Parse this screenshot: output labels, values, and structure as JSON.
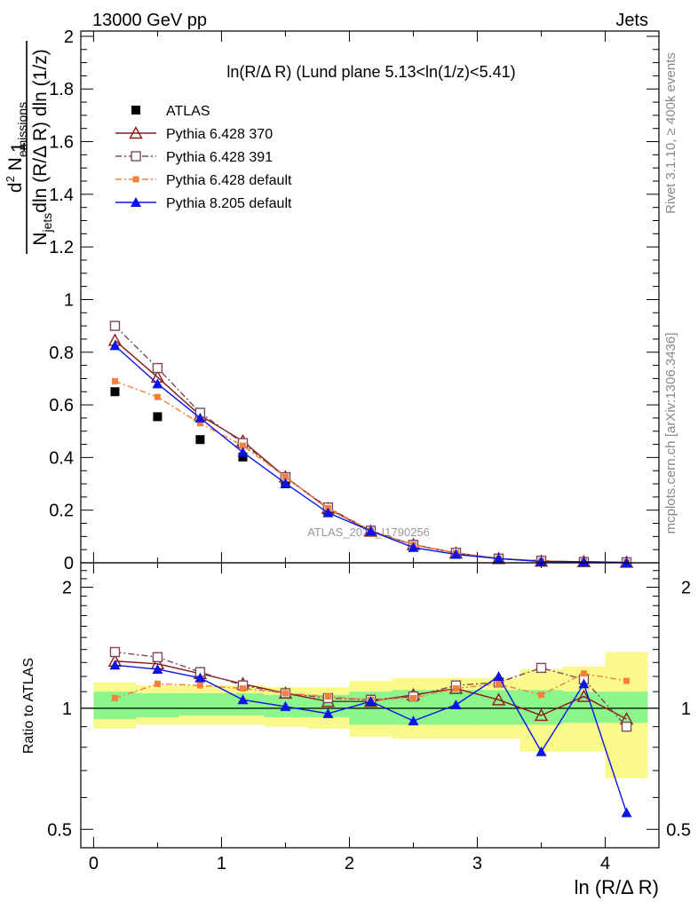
{
  "header": {
    "process": "13000 GeV pp",
    "category": "Jets"
  },
  "side_labels": {
    "rivet": "Rivet 3.1.10, ≥ 400k events",
    "mcplots": "mcplots.cern.ch [arXiv:1306.3436]"
  },
  "main_axis": {
    "ylabel_numerator_pre": "d",
    "ylabel_numerator_sup": "2",
    "ylabel_numerator_main": " N",
    "ylabel_numerator_sub": "emissions",
    "ylabel_den_pre": "N",
    "ylabel_den_sub": "jets",
    "ylabel_den_main": "dln (R/Δ R) dln (1/z)",
    "ylabel_prefix": "1"
  },
  "ratio_axis": {
    "ylabel": "Ratio to ATLAS"
  },
  "colors": {
    "data": "#000000",
    "p370": "#8b1a1a",
    "p391": "#7a4a5a",
    "p6def": "#f57f3c",
    "p8def": "#0a14e6",
    "band_inner": "#8cf58c",
    "band_outer": "#fafa8c"
  },
  "chart_data": [
    {
      "type": "scatter",
      "panel": "main",
      "title": "ln(R/Δ R) (Lund plane 5.13<ln(1/z)<5.41)",
      "watermark": "ATLAS_2020_I1790256",
      "xlabel": "ln (R/Δ R)",
      "ylabel": "1/N_jets d²N_emissions / dln(R/ΔR) dln(1/z)",
      "xlim": [
        -0.1,
        4.42
      ],
      "ylim": [
        0,
        2.02
      ],
      "xticks": [
        0,
        1,
        2,
        3,
        4
      ],
      "yticks": [
        0,
        0.2,
        0.4,
        0.6,
        0.8,
        1,
        1.2,
        1.4,
        1.6,
        1.8,
        2
      ],
      "ytick_labels": [
        "0",
        "0.2",
        "0.4",
        "0.6",
        "0.8",
        "1",
        "1.2",
        "1.4",
        "1.6",
        "1.8",
        "2"
      ],
      "legend_position": "top-left",
      "x": [
        0.167,
        0.5,
        0.833,
        1.167,
        1.5,
        1.833,
        2.167,
        2.5,
        2.833,
        3.167,
        3.5,
        3.833,
        4.167
      ],
      "series": [
        {
          "name": "ATLAS",
          "key": "data",
          "marker": "square",
          "line": "none",
          "values": [
            0.65,
            0.555,
            0.468,
            0.402,
            0.3,
            0.195,
            0.118,
            0.064,
            0.033,
            0.013,
            0.006,
            0.003,
            0.002
          ]
        },
        {
          "name": "Pythia 6.428 370",
          "key": "p370",
          "marker": "triangle-open",
          "line": "solid",
          "values": [
            0.845,
            0.705,
            0.56,
            0.462,
            0.326,
            0.206,
            0.12,
            0.069,
            0.037,
            0.016,
            0.006,
            0.004,
            0.002
          ]
        },
        {
          "name": "Pythia 6.428 391",
          "key": "p391",
          "marker": "square-open",
          "line": "dashdot",
          "values": [
            0.9,
            0.74,
            0.57,
            0.455,
            0.325,
            0.21,
            0.122,
            0.068,
            0.038,
            0.016,
            0.008,
            0.003,
            0.002
          ]
        },
        {
          "name": "Pythia 6.428 default",
          "key": "p6def",
          "marker": "square-small",
          "line": "dashdot",
          "values": [
            0.69,
            0.63,
            0.53,
            0.445,
            0.326,
            0.208,
            0.122,
            0.068,
            0.037,
            0.016,
            0.007,
            0.004,
            0.002
          ]
        },
        {
          "name": "Pythia 8.205 default",
          "key": "p8def",
          "marker": "triangle",
          "line": "solid",
          "values": [
            0.825,
            0.68,
            0.55,
            0.42,
            0.302,
            0.19,
            0.121,
            0.058,
            0.032,
            0.016,
            0.005,
            0.004,
            0.001
          ]
        }
      ]
    },
    {
      "type": "scatter",
      "panel": "ratio",
      "xlabel": "ln (R/Δ R)",
      "ylabel": "Ratio to ATLAS",
      "yscale": "log",
      "xlim": [
        -0.1,
        4.42
      ],
      "ylim": [
        0.45,
        2.3
      ],
      "xticks": [
        0,
        1,
        2,
        3,
        4
      ],
      "yticks": [
        0.5,
        1,
        2
      ],
      "ytick_labels": [
        "0.5",
        "1",
        "2"
      ],
      "bins": [
        0,
        0.333,
        0.667,
        1.0,
        1.333,
        1.667,
        2.0,
        2.333,
        2.667,
        3.0,
        3.333,
        3.667,
        4.0,
        4.333
      ],
      "band_inner": [
        [
          0.94,
          1.1
        ],
        [
          0.95,
          1.09
        ],
        [
          0.96,
          1.09
        ],
        [
          0.96,
          1.09
        ],
        [
          0.95,
          1.08
        ],
        [
          0.95,
          1.08
        ],
        [
          0.91,
          1.1
        ],
        [
          0.91,
          1.11
        ],
        [
          0.91,
          1.11
        ],
        [
          0.91,
          1.11
        ],
        [
          0.91,
          1.11
        ],
        [
          0.92,
          1.1
        ],
        [
          0.92,
          1.1
        ]
      ],
      "band_outer": [
        [
          0.89,
          1.16
        ],
        [
          0.91,
          1.14
        ],
        [
          0.91,
          1.14
        ],
        [
          0.91,
          1.14
        ],
        [
          0.9,
          1.13
        ],
        [
          0.89,
          1.13
        ],
        [
          0.85,
          1.17
        ],
        [
          0.84,
          1.19
        ],
        [
          0.84,
          1.19
        ],
        [
          0.84,
          1.19
        ],
        [
          0.78,
          1.25
        ],
        [
          0.78,
          1.27
        ],
        [
          0.67,
          1.38
        ]
      ],
      "x": [
        0.167,
        0.5,
        0.833,
        1.167,
        1.5,
        1.833,
        2.167,
        2.5,
        2.833,
        3.167,
        3.5,
        3.833,
        4.167
      ],
      "series": [
        {
          "name": "Pythia 6.428 370",
          "key": "p370",
          "values": [
            1.31,
            1.29,
            1.22,
            1.15,
            1.09,
            1.04,
            1.04,
            1.08,
            1.12,
            1.05,
            0.96,
            1.07,
            0.94
          ]
        },
        {
          "name": "Pythia 6.428 391",
          "key": "p391",
          "values": [
            1.38,
            1.34,
            1.23,
            1.14,
            1.09,
            1.06,
            1.05,
            1.07,
            1.14,
            1.16,
            1.26,
            1.18,
            0.9
          ]
        },
        {
          "name": "Pythia 6.428 default",
          "key": "p6def",
          "values": [
            1.06,
            1.15,
            1.14,
            1.12,
            1.09,
            1.07,
            1.05,
            1.06,
            1.12,
            1.15,
            1.08,
            1.22,
            1.17
          ]
        },
        {
          "name": "Pythia 8.205 default",
          "key": "p8def",
          "values": [
            1.28,
            1.25,
            1.19,
            1.05,
            1.01,
            0.97,
            1.04,
            0.93,
            1.02,
            1.2,
            0.78,
            1.15,
            0.55
          ]
        }
      ]
    }
  ]
}
